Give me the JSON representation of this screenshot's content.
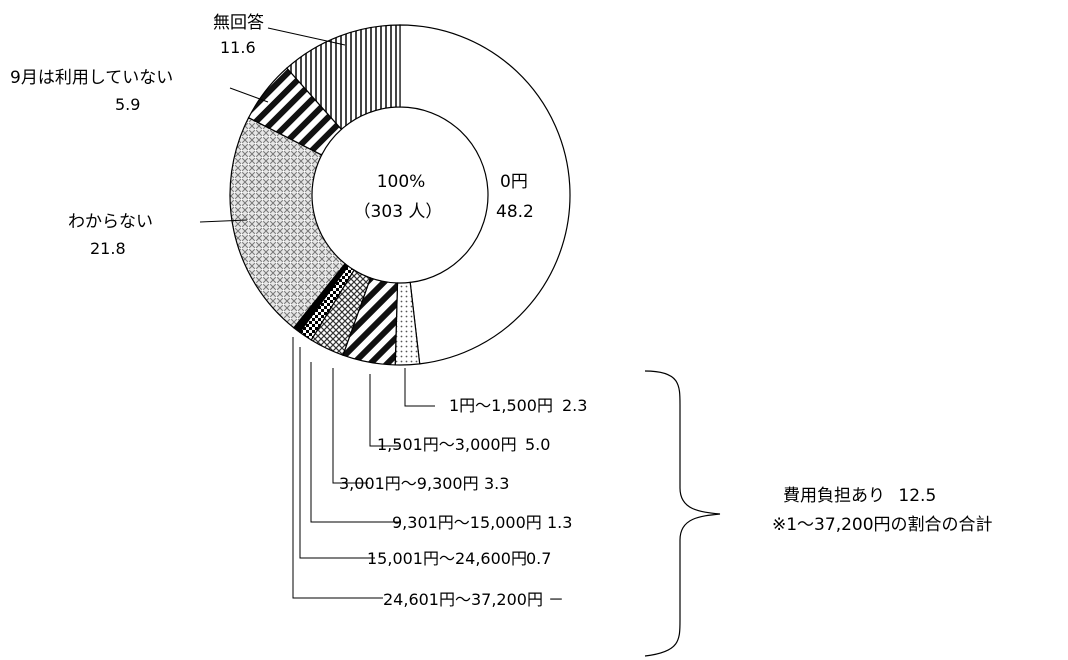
{
  "chart_data": {
    "type": "pie",
    "donut": true,
    "center_label": {
      "line1": "100%",
      "line2": "（303 人）"
    },
    "slices": [
      {
        "label": "0円",
        "value": 48.2,
        "value_text": "48.2",
        "pattern": "white"
      },
      {
        "label": "1円～1,500円",
        "value": 2.3,
        "value_text": "2.3",
        "pattern": "dots"
      },
      {
        "label": "1,501円～3,000円",
        "value": 5.0,
        "value_text": "5.0",
        "pattern": "diag-thick"
      },
      {
        "label": "3,001円～9,300円",
        "value": 3.3,
        "value_text": "3.3",
        "pattern": "cross-hatch"
      },
      {
        "label": "9,301円～15,000円",
        "value": 1.3,
        "value_text": "1.3",
        "pattern": "checker"
      },
      {
        "label": "15,001円～24,600円",
        "value": 0.7,
        "value_text": "0.7",
        "pattern": "black"
      },
      {
        "label": "24,601円～37,200円",
        "value": 0,
        "value_text": "－",
        "pattern": "white"
      },
      {
        "label": "わからない",
        "value": 21.8,
        "value_text": "21.8",
        "pattern": "crosshatch-fine"
      },
      {
        "label": "9月は利用していない",
        "value": 5.9,
        "value_text": "5.9",
        "pattern": "diag-thick"
      },
      {
        "label": "無回答",
        "value": 11.6,
        "value_text": "11.6",
        "pattern": "vertical"
      }
    ],
    "bracket_group": {
      "label": "費用負担あり",
      "value_text": "12.5",
      "note": "※1～37,200円の割合の合計"
    }
  }
}
